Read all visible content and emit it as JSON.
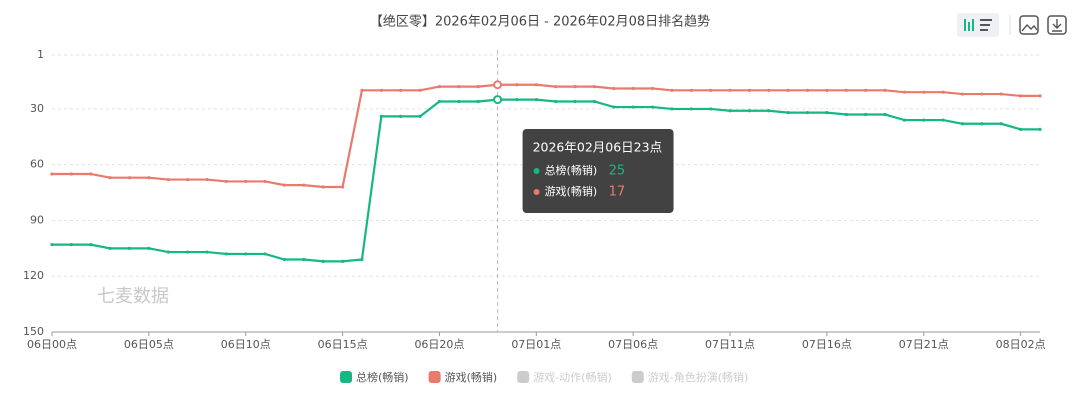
{
  "chart_data": {
    "type": "line",
    "title": "【绝区零】2026年02月06日 - 2026年02月08日排名趋势",
    "watermark": "七麦数据",
    "categories": [
      "06日00点",
      null,
      null,
      null,
      null,
      "06日05点",
      null,
      null,
      null,
      null,
      "06日10点",
      null,
      null,
      null,
      null,
      "06日15点",
      null,
      null,
      null,
      null,
      "06日20点",
      null,
      null,
      null,
      null,
      "07日01点",
      null,
      null,
      null,
      null,
      "07日06点",
      null,
      null,
      null,
      null,
      "07日11点",
      null,
      null,
      null,
      null,
      "07日16点",
      null,
      null,
      null,
      null,
      "07日21点",
      null,
      null,
      null,
      null,
      "08日02点",
      null
    ],
    "series": [
      {
        "name": "总榜(畅销)",
        "color": "#15b785",
        "values": [
          103,
          103,
          103,
          105,
          105,
          105,
          107,
          107,
          107,
          108,
          108,
          108,
          111,
          111,
          112,
          112,
          111,
          34,
          34,
          34,
          26,
          26,
          26,
          25,
          25,
          25,
          26,
          26,
          26,
          29,
          29,
          29,
          30,
          30,
          30,
          31,
          31,
          31,
          32,
          32,
          32,
          33,
          33,
          33,
          36,
          36,
          36,
          38,
          38,
          38,
          41,
          41
        ]
      },
      {
        "name": "游戏(畅销)",
        "color": "#ea7a6c",
        "values": [
          65,
          65,
          65,
          67,
          67,
          67,
          68,
          68,
          68,
          69,
          69,
          69,
          71,
          71,
          72,
          72,
          20,
          20,
          20,
          20,
          18,
          18,
          18,
          17,
          17,
          17,
          18,
          18,
          18,
          19,
          19,
          19,
          20,
          20,
          20,
          20,
          20,
          20,
          20,
          20,
          20,
          20,
          20,
          20,
          21,
          21,
          21,
          22,
          22,
          22,
          23,
          23
        ]
      }
    ],
    "disabled_series": [
      "游戏-动作(畅销)",
      "游戏-角色扮演(畅销)"
    ],
    "disabled_color": "#cccccc",
    "ylim": [
      1,
      150
    ],
    "yticks": [
      1,
      30,
      60,
      90,
      120,
      150
    ],
    "y_inverted": true,
    "grid": true,
    "tooltip": {
      "index": 23,
      "title": "2026年02月06日23点"
    }
  }
}
